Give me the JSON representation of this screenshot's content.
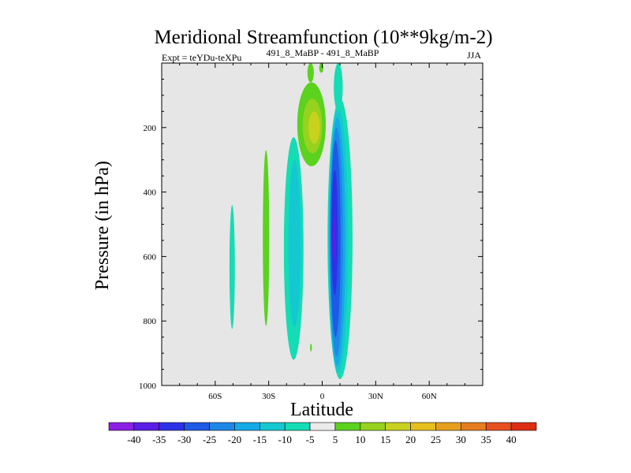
{
  "chart_data": {
    "type": "contour",
    "title": "Meridional Streamfunction (10**9kg/m-2)",
    "subtitle_left": "Expt = teYDu-teXPu",
    "subtitle_center": "491_8_MaBP - 491_8_MaBP",
    "subtitle_right": "JJA",
    "xlabel": "Latitude",
    "ylabel": "Pressure (in hPa)",
    "xlim": [
      -90,
      90
    ],
    "ylim": [
      1000,
      0
    ],
    "x_ticks": [
      {
        "value": -60,
        "label": "60S"
      },
      {
        "value": -30,
        "label": "30S"
      },
      {
        "value": 0,
        "label": "0"
      },
      {
        "value": 30,
        "label": "30N"
      },
      {
        "value": 60,
        "label": "60N"
      }
    ],
    "y_ticks": [
      {
        "value": 200,
        "label": "200"
      },
      {
        "value": 400,
        "label": "400"
      },
      {
        "value": 600,
        "label": "600"
      },
      {
        "value": 800,
        "label": "800"
      },
      {
        "value": 1000,
        "label": "1000"
      }
    ],
    "background_color": "#e6e6e6",
    "colorbar": {
      "labels": [
        "-40",
        "-35",
        "-30",
        "-25",
        "-20",
        "-15",
        "-10",
        "-5",
        "5",
        "10",
        "15",
        "20",
        "25",
        "30",
        "35",
        "40"
      ],
      "colors": [
        "#8c1ee6",
        "#5a1ee6",
        "#2d32e6",
        "#1e5ae6",
        "#1e87e6",
        "#14aae6",
        "#14c8d2",
        "#14dcb4",
        "#ebebeb",
        "#5ad21e",
        "#96d21e",
        "#c8d21e",
        "#e6be1e",
        "#e6a01e",
        "#e67d1e",
        "#e6501e",
        "#dc2d14"
      ]
    },
    "features": [
      {
        "name": "sh-mid-cell",
        "center_lat": -50.5,
        "lat_halfwidth": 1.5,
        "p_top": 440,
        "p_bottom": 825,
        "level": -7.5
      },
      {
        "name": "sh-subtropic-pos",
        "center_lat": -31.5,
        "lat_halfwidth": 1.8,
        "p_top": 270,
        "p_bottom": 815,
        "level": 7.5
      },
      {
        "name": "sh-ferrel-neg",
        "center_lat": -16,
        "lat_halfwidth": 5.5,
        "p_top": 230,
        "p_bottom": 920,
        "level": -7.5
      },
      {
        "name": "sh-ferrel-neg-core",
        "center_lat": -15.5,
        "lat_halfwidth": 3.5,
        "p_top": 300,
        "p_bottom": 820,
        "level": -12.5
      },
      {
        "name": "upper-pos-cell",
        "center_lat": -6,
        "lat_halfwidth": 8,
        "p_top": 60,
        "p_bottom": 320,
        "level": 7.5
      },
      {
        "name": "upper-pos-core",
        "center_lat": -5.5,
        "lat_halfwidth": 5.5,
        "p_top": 110,
        "p_bottom": 280,
        "level": 12.5
      },
      {
        "name": "upper-pos-max",
        "center_lat": -4.5,
        "lat_halfwidth": 3.2,
        "p_top": 150,
        "p_bottom": 250,
        "level": 17.5
      },
      {
        "name": "hadley-neg-outer",
        "center_lat": 10,
        "lat_halfwidth": 7,
        "p_top": 110,
        "p_bottom": 980,
        "level": -7.5
      },
      {
        "name": "hadley-neg-2",
        "center_lat": 9,
        "lat_halfwidth": 5.5,
        "p_top": 140,
        "p_bottom": 960,
        "level": -12.5
      },
      {
        "name": "hadley-neg-3",
        "center_lat": 8.5,
        "lat_halfwidth": 4.5,
        "p_top": 170,
        "p_bottom": 940,
        "level": -17.5
      },
      {
        "name": "hadley-neg-4",
        "center_lat": 8,
        "lat_halfwidth": 3.6,
        "p_top": 200,
        "p_bottom": 910,
        "level": -22.5
      },
      {
        "name": "hadley-neg-5",
        "center_lat": 7.5,
        "lat_halfwidth": 2.8,
        "p_top": 240,
        "p_bottom": 850,
        "level": -27.5
      },
      {
        "name": "hadley-neg-core",
        "center_lat": 7,
        "lat_halfwidth": 1.8,
        "p_top": 330,
        "p_bottom": 720,
        "level": -32.5
      },
      {
        "name": "hadley-neg-peak",
        "center_lat": 6.5,
        "lat_halfwidth": 0.8,
        "p_top": 470,
        "p_bottom": 620,
        "level": -37.5
      },
      {
        "name": "stratos-jet-neg",
        "center_lat": 9,
        "lat_halfwidth": 2.5,
        "p_top": 0,
        "p_bottom": 150,
        "level": -7.5
      },
      {
        "name": "stratos-pos-left",
        "center_lat": -6.5,
        "lat_halfwidth": 1.8,
        "p_top": 0,
        "p_bottom": 60,
        "level": 7.5
      },
      {
        "name": "stratos-pos-right",
        "center_lat": -0.5,
        "lat_halfwidth": 1.2,
        "p_top": 0,
        "p_bottom": 30,
        "level": 7.5
      },
      {
        "name": "small-pos-dot",
        "center_lat": -6.3,
        "lat_halfwidth": 0.5,
        "p_top": 870,
        "p_bottom": 895,
        "level": 7.5
      }
    ]
  }
}
